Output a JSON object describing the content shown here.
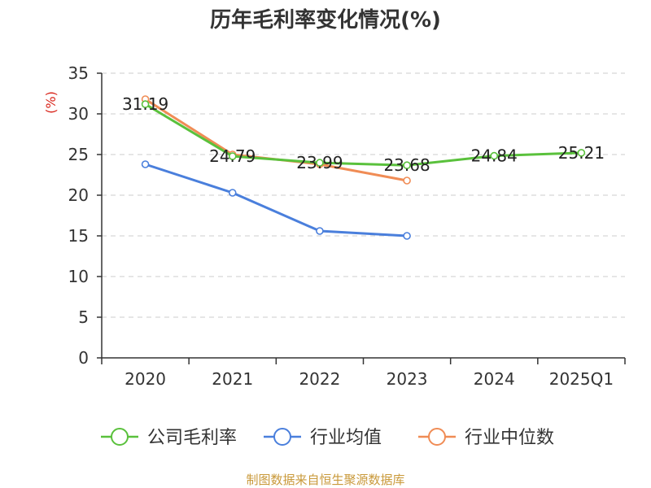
{
  "chart_data": {
    "type": "line",
    "title": "历年毛利率变化情况(%)",
    "ylabel": "(%)",
    "xlabel": "",
    "categories": [
      "2020",
      "2021",
      "2022",
      "2023",
      "2024",
      "2025Q1"
    ],
    "ylim": [
      0,
      35
    ],
    "yticks": [
      0,
      5,
      10,
      15,
      20,
      25,
      30,
      35
    ],
    "grid": true,
    "legend_position": "bottom",
    "series": [
      {
        "name": "公司毛利率",
        "color": "#5ac13c",
        "values": [
          31.19,
          24.79,
          23.99,
          23.68,
          24.84,
          25.21
        ],
        "labels": [
          "31.19",
          "24.79",
          "23.99",
          "23.68",
          "24.84",
          "25.21"
        ]
      },
      {
        "name": "行业均值",
        "color": "#4a7fdc",
        "values": [
          23.8,
          20.3,
          15.6,
          15.0,
          null,
          null
        ]
      },
      {
        "name": "行业中位数",
        "color": "#f08c55",
        "values": [
          31.8,
          25.0,
          23.8,
          21.8,
          null,
          null
        ]
      }
    ]
  },
  "footer": {
    "source": "制图数据来自恒生聚源数据库"
  }
}
